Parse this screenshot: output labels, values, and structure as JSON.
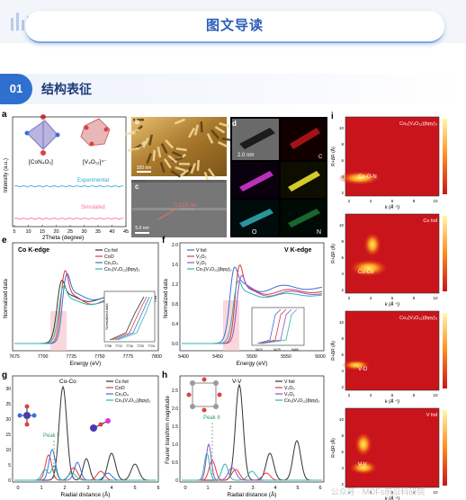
{
  "header": {
    "title": "图文导读"
  },
  "section": {
    "number": "01",
    "label": "结构表征"
  },
  "figure": {
    "panel_a": {
      "letter": "a",
      "formula1": "[CoN₄O₂]",
      "formula2": "[V₄O₁₂]⁴⁻",
      "ylabel": "Intensity (a.u.)",
      "xlabel": "2Theta (degree)",
      "ticks": [
        "5",
        "10",
        "15",
        "20",
        "25",
        "30",
        "35",
        "40",
        "45"
      ],
      "legend_exp": "Experimental",
      "legend_sim": "Simulated"
    },
    "panel_b": {
      "letter": "b",
      "scale": "100 nm"
    },
    "panel_c": {
      "letter": "c",
      "lattice": "0.215 nm",
      "scale": "5.0 nm"
    },
    "panel_d": {
      "letter": "d",
      "scale": "2.0 nm",
      "el_c": "C",
      "el_co": "Co",
      "el_v": "V",
      "el_o": "O",
      "el_n": "N"
    },
    "panel_e": {
      "letter": "e",
      "title": "Co K-edge",
      "ylabel": "Normalized data",
      "xlabel": "Energy (eV)",
      "ticks": [
        "7675",
        "7700",
        "7725",
        "7750",
        "7775",
        "7800"
      ],
      "legend": [
        "Co foil",
        "CoO",
        "Co₃O₄",
        "Co₃(V₄O₁₂)(bpy)₃"
      ],
      "inset_ylabel": "Normalized data",
      "inset_ticks": [
        "7708",
        "7712",
        "7716",
        "7720",
        "7724"
      ]
    },
    "panel_f": {
      "letter": "f",
      "title": "V K-edge",
      "ylabel": "Normalized data",
      "xlabel": "Energy (eV)",
      "ticks": [
        "5400",
        "5450",
        "5500",
        "5550",
        "5600"
      ],
      "yticks": [
        "0.0",
        "0.4",
        "0.8",
        "1.2",
        "1.6",
        "2.0"
      ],
      "legend": [
        "V foil",
        "V₂O₃",
        "V₂O₅",
        "Co₃(V₄O₁₂)(bpy)₃"
      ],
      "inset_ticks": [
        "5470",
        "5475",
        "5480"
      ]
    },
    "panel_g": {
      "letter": "g",
      "peak_main": "Co-Co",
      "peak_i": "Peak I",
      "ylabel": "Fourier transform magnitude",
      "xlabel": "Radial distance (Å)",
      "ticks": [
        "0",
        "1",
        "2",
        "3",
        "4",
        "5",
        "6"
      ],
      "yticks": [
        "0",
        "5",
        "10",
        "15",
        "20",
        "25",
        "30"
      ],
      "legend": [
        "Co foil",
        "CoO",
        "Co₃O₄",
        "Co₃(V₄O₁₂)(bpy)₃"
      ]
    },
    "panel_h": {
      "letter": "h",
      "peak_main": "V-V",
      "peak_ii": "Peak II",
      "ylabel": "Fourier transform magnitude",
      "xlabel": "Radial distance (Å)",
      "ticks": [
        "0",
        "1",
        "2",
        "3",
        "4",
        "5",
        "6"
      ],
      "yticks": [
        "0",
        "0.5",
        "1.0",
        "1.5",
        "2.0",
        "2.5"
      ],
      "legend": [
        "V foil",
        "V₂O₃",
        "V₂O₅",
        "Co₃(V₄O₁₂)(bpy)₃"
      ]
    },
    "panel_i": {
      "letter": "i",
      "ylabel": "R+ΔR (Å)",
      "xlabel": "k (Å⁻¹)",
      "maps": [
        {
          "title": "Co₃(V₄O₁₂)(bpy)₃",
          "label": "Co-O-N"
        },
        {
          "title": "Co foil",
          "label": "Co-Co"
        },
        {
          "title": "Co₃(V₄O₁₂)(bpy)₃",
          "label": "V-O"
        },
        {
          "title": "V foil",
          "label": "V-V"
        }
      ],
      "yticks": [
        "2",
        "4",
        "6",
        "8",
        "10"
      ],
      "kticks": [
        "2",
        "4",
        "6",
        "8",
        "10"
      ]
    }
  },
  "watermark": "公众号 · MOFs前沿科研院",
  "colors": {
    "accent": "#2f6fd0",
    "title": "#2a5db8",
    "black": "#333333",
    "red": "#e03a3a",
    "blue": "#3a6fd8",
    "teal": "#2fb5b0",
    "purple": "#9a4fc8",
    "green": "#6cc070"
  }
}
